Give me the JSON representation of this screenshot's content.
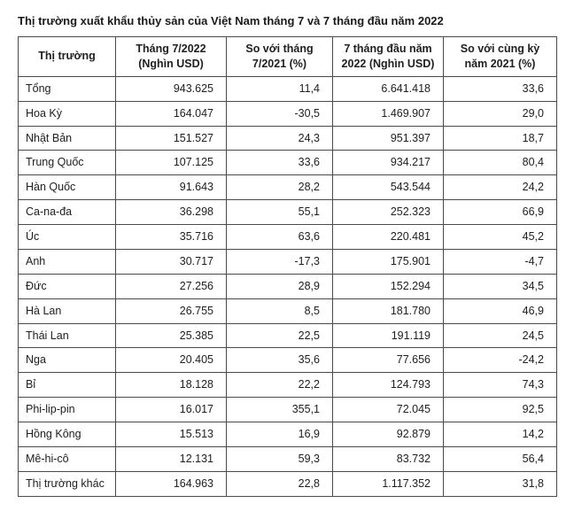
{
  "title": "Thị trường xuất khẩu thủy sản của Việt Nam tháng 7 và 7 tháng đầu năm 2022",
  "columns": [
    "Thị trường",
    "Tháng 7/2022 (Nghìn USD)",
    "So với tháng 7/2021 (%)",
    "7 tháng đầu năm 2022 (Nghìn USD)",
    "So với cùng kỳ năm 2021 (%)"
  ],
  "rows": [
    {
      "market": "Tổng",
      "jul_usd": "943.625",
      "jul_pct": "11,4",
      "ytd_usd": "6.641.418",
      "ytd_pct": "33,6"
    },
    {
      "market": "Hoa Kỳ",
      "jul_usd": "164.047",
      "jul_pct": "-30,5",
      "ytd_usd": "1.469.907",
      "ytd_pct": "29,0"
    },
    {
      "market": "Nhật Bản",
      "jul_usd": "151.527",
      "jul_pct": "24,3",
      "ytd_usd": "951.397",
      "ytd_pct": "18,7"
    },
    {
      "market": "Trung Quốc",
      "jul_usd": "107.125",
      "jul_pct": "33,6",
      "ytd_usd": "934.217",
      "ytd_pct": "80,4"
    },
    {
      "market": "Hàn Quốc",
      "jul_usd": "91.643",
      "jul_pct": "28,2",
      "ytd_usd": "543.544",
      "ytd_pct": "24,2"
    },
    {
      "market": "Ca-na-đa",
      "jul_usd": "36.298",
      "jul_pct": "55,1",
      "ytd_usd": "252.323",
      "ytd_pct": "66,9"
    },
    {
      "market": "Úc",
      "jul_usd": "35.716",
      "jul_pct": "63,6",
      "ytd_usd": "220.481",
      "ytd_pct": "45,2"
    },
    {
      "market": "Anh",
      "jul_usd": "30.717",
      "jul_pct": "-17,3",
      "ytd_usd": "175.901",
      "ytd_pct": "-4,7"
    },
    {
      "market": "Đức",
      "jul_usd": "27.256",
      "jul_pct": "28,9",
      "ytd_usd": "152.294",
      "ytd_pct": "34,5"
    },
    {
      "market": "Hà Lan",
      "jul_usd": "26.755",
      "jul_pct": "8,5",
      "ytd_usd": "181.780",
      "ytd_pct": "46,9"
    },
    {
      "market": "Thái Lan",
      "jul_usd": "25.385",
      "jul_pct": "22,5",
      "ytd_usd": "191.119",
      "ytd_pct": "24,5"
    },
    {
      "market": "Nga",
      "jul_usd": "20.405",
      "jul_pct": "35,6",
      "ytd_usd": "77.656",
      "ytd_pct": "-24,2"
    },
    {
      "market": "Bỉ",
      "jul_usd": "18.128",
      "jul_pct": "22,2",
      "ytd_usd": "124.793",
      "ytd_pct": "74,3"
    },
    {
      "market": "Phi-lip-pin",
      "jul_usd": "16.017",
      "jul_pct": "355,1",
      "ytd_usd": "72.045",
      "ytd_pct": "92,5"
    },
    {
      "market": "Hồng Kông",
      "jul_usd": "15.513",
      "jul_pct": "16,9",
      "ytd_usd": "92.879",
      "ytd_pct": "14,2"
    },
    {
      "market": "Mê-hi-cô",
      "jul_usd": "12.131",
      "jul_pct": "59,3",
      "ytd_usd": "83.732",
      "ytd_pct": "56,4"
    },
    {
      "market": "Thị trường khác",
      "jul_usd": "164.963",
      "jul_pct": "22,8",
      "ytd_usd": "1.117.352",
      "ytd_pct": "31,8"
    }
  ]
}
